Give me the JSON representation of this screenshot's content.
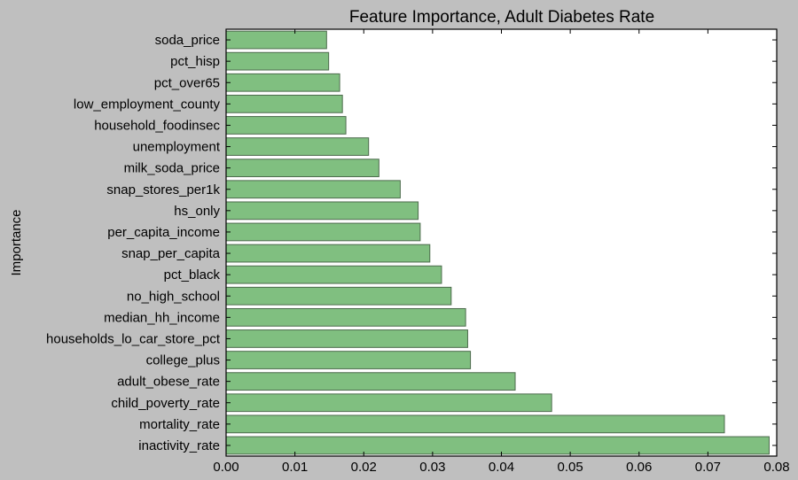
{
  "chart_data": {
    "type": "bar",
    "orientation": "horizontal",
    "title": "Feature Importance, Adult Diabetes Rate",
    "xlabel": "",
    "ylabel": "Importance",
    "xlim": [
      0,
      0.08
    ],
    "xticks": [
      "0.00",
      "0.01",
      "0.02",
      "0.03",
      "0.04",
      "0.05",
      "0.06",
      "0.07",
      "0.08"
    ],
    "grid": false,
    "colors": {
      "bar_fill": "#80bf80",
      "bar_edge": "#4d6b4d",
      "plot_background": "#ffffff",
      "figure_background": "#bfbfbf"
    },
    "categories": [
      "soda_price",
      "pct_hisp",
      "pct_over65",
      "low_employment_county",
      "household_foodinsec",
      "unemployment",
      "milk_soda_price",
      "snap_stores_per1k",
      "hs_only",
      "per_capita_income",
      "snap_per_capita",
      "pct_black",
      "no_high_school",
      "median_hh_income",
      "households_lo_car_store_pct",
      "college_plus",
      "adult_obese_rate",
      "child_poverty_rate",
      "mortality_rate",
      "inactivity_rate"
    ],
    "values": [
      0.0146,
      0.0149,
      0.0165,
      0.0169,
      0.0174,
      0.0207,
      0.0222,
      0.0253,
      0.0279,
      0.0282,
      0.0296,
      0.0313,
      0.0327,
      0.0348,
      0.0351,
      0.0355,
      0.042,
      0.0473,
      0.0724,
      0.0789
    ]
  }
}
